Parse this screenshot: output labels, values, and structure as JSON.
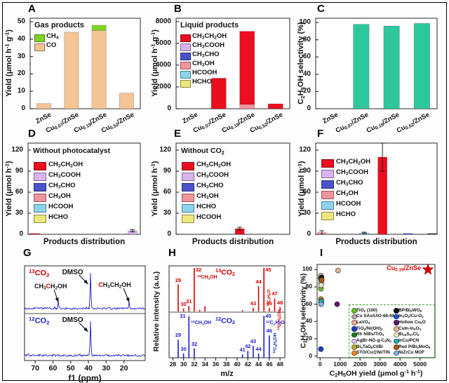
{
  "chart_data": [
    {
      "panel": "A",
      "type": "bar",
      "title": "Gas products",
      "ylabel": "Yield (μmol h^-1^ g^-1^)",
      "ylim": [
        0,
        52
      ],
      "yticks": [
        0,
        10,
        20,
        30,
        40,
        50
      ],
      "categories": [
        "ZnSe",
        "Cu_0.07_/ZnSe",
        "Cu_0.19_/ZnSe",
        "Cu_0.52_/ZnSe"
      ],
      "series": [
        {
          "name": "CH_4_",
          "color": "#7fd321",
          "values": [
            0,
            0,
            3,
            0
          ]
        },
        {
          "name": "CO",
          "color": "#f4c495",
          "values": [
            3,
            44,
            45,
            9
          ]
        }
      ]
    },
    {
      "panel": "B",
      "type": "bar",
      "title": "Liquid products",
      "ylabel": "Yield (μmol h^-1^ g^-1^)",
      "ylim": [
        0,
        8300
      ],
      "yticks": [
        0,
        2000,
        4000,
        6000,
        8000
      ],
      "categories": [
        "ZnSe",
        "Cu_0.07_/ZnSe",
        "Cu_0.19_/ZnSe",
        "Cu_0.52_/ZnSe"
      ],
      "series": [
        {
          "name": "CH_3_CH_2_OH",
          "color": "#ea0e1e",
          "values": [
            0,
            2800,
            6700,
            450
          ]
        },
        {
          "name": "CH_3_COOH",
          "color": "#d9b3f0",
          "values": [
            0,
            0,
            0,
            0
          ]
        },
        {
          "name": "CH_3_CHO",
          "color": "#4a52cc",
          "values": [
            0,
            0,
            0,
            0
          ]
        },
        {
          "name": "CH_3_OH",
          "color": "#f2949c",
          "values": [
            0,
            0,
            400,
            0
          ]
        },
        {
          "name": "HCOOH",
          "color": "#8ad4f0",
          "values": [
            0,
            0,
            0,
            0
          ]
        },
        {
          "name": "HCHO",
          "color": "#ece87d",
          "values": [
            0,
            0,
            0,
            0
          ]
        }
      ]
    },
    {
      "panel": "C",
      "type": "bar",
      "title": "",
      "hide_legend": true,
      "ylabel": "C_2_H_5_OH selectivity (%)",
      "ylim": [
        0,
        105
      ],
      "yticks": [
        0,
        20,
        40,
        60,
        80,
        100
      ],
      "categories": [
        "ZnSe",
        "Cu_0.07_/ZnSe",
        "Cu_0.19_/ZnSe",
        "Cu_0.52_/ZnSe"
      ],
      "series": [
        {
          "name": "C_2_H_5_OH selectivity",
          "color": "#2ec79b",
          "values": [
            0,
            98,
            96,
            99
          ]
        }
      ]
    },
    {
      "panel": "D",
      "type": "dist",
      "title": "Without photocatalyst",
      "ylabel": "Yield (μmol h^-1^)",
      "xlabel": "Products distribution",
      "ylim": [
        0,
        130
      ],
      "yticks": [
        0,
        30,
        60,
        90,
        120
      ],
      "legend": [
        {
          "label": "CH_3_CH_2_OH",
          "color": "#ea0e1e"
        },
        {
          "label": "CH_3_COOH",
          "color": "#d9b3f0"
        },
        {
          "label": "CH_3_CHO",
          "color": "#4a52cc"
        },
        {
          "label": "CH_3_OH",
          "color": "#f2949c"
        },
        {
          "label": "HCOOH",
          "color": "#8ad4f0"
        },
        {
          "label": "HCHO",
          "color": "#ece87d"
        }
      ],
      "bars": [
        {
          "x": 0.06,
          "value": 0.8,
          "err": 0,
          "color": "#ea0e1e"
        },
        {
          "x": 0.93,
          "value": 5,
          "err": 1.5,
          "color": "#d9b3f0"
        }
      ]
    },
    {
      "panel": "E",
      "type": "dist",
      "title": "Without CO_2_",
      "ylabel": "Yield (μmol h^-1^)",
      "xlabel": "Products distribution",
      "ylim": [
        0,
        130
      ],
      "yticks": [
        0,
        30,
        60,
        90,
        120
      ],
      "legend": [
        {
          "label": "CH_3_CH_2_OH",
          "color": "#ea0e1e"
        },
        {
          "label": "CH_3_COOH",
          "color": "#d9b3f0"
        },
        {
          "label": "CH_3_CHO",
          "color": "#4a52cc"
        },
        {
          "label": "CH_3_OH",
          "color": "#f2949c"
        },
        {
          "label": "HCHO",
          "color": "#8ad4f0"
        },
        {
          "label": "HCOOH",
          "color": "#ece87d"
        }
      ],
      "bars": [
        {
          "x": 0.56,
          "value": 8,
          "err": 2,
          "color": "#ea0e1e"
        }
      ]
    },
    {
      "panel": "F",
      "type": "dist",
      "title": "",
      "ylabel": "Yield (μmol h^-1^)",
      "xlabel": "Products distribution",
      "ylim": [
        0,
        130
      ],
      "yticks": [
        0,
        30,
        60,
        90,
        120
      ],
      "legend": [
        {
          "label": "CH_3_CH_2_OH",
          "color": "#ea0e1e"
        },
        {
          "label": "CH_3_COOH",
          "color": "#d9b3f0"
        },
        {
          "label": "CH_3_CHO",
          "color": "#4a52cc"
        },
        {
          "label": "CH_3_OH",
          "color": "#f2949c"
        },
        {
          "label": "HCOOH",
          "color": "#8ad4f0"
        },
        {
          "label": "HCHO",
          "color": "#ece87d"
        }
      ],
      "bars": [
        {
          "x": 0.05,
          "value": 2.5,
          "err": 2.5,
          "color": "#f2949c"
        },
        {
          "x": 0.4,
          "value": 2,
          "err": 1,
          "color": "#8ad4f0"
        },
        {
          "x": 0.55,
          "value": 110,
          "err": 20,
          "color": "#ea0e1e"
        },
        {
          "x": 0.76,
          "value": 0.5,
          "err": 0,
          "color": "#4a52cc"
        },
        {
          "x": 0.96,
          "value": 0.8,
          "err": 0,
          "color": "#333333"
        }
      ]
    },
    {
      "panel": "G",
      "type": "nmr",
      "xlabel": "f1 (ppm)",
      "xlim": [
        76,
        8
      ],
      "xticks": [
        70,
        60,
        50,
        40,
        30,
        20
      ],
      "traces": [
        {
          "label": "^13^CO_2_",
          "label_color": "#d40000",
          "line_color": "#1a1ad4",
          "peaks": [
            {
              "ppm": 57,
              "h": 0.22
            },
            {
              "ppm": 39,
              "h": 0.92
            },
            {
              "ppm": 17,
              "h": 0.2
            }
          ],
          "annotations": [
            {
              "text": "DMSO",
              "ppm": 39
            },
            {
              "text": "CH_3_[C]H_2_OH",
              "ppm": 57
            },
            {
              "text": "[C]H_3_CH_2_OH",
              "ppm": 17
            }
          ]
        },
        {
          "label": "^12^CO_2_",
          "label_color": "#1a1ad4",
          "line_color": "#1a1ad4",
          "peaks": [
            {
              "ppm": 39,
              "h": 0.9
            }
          ],
          "annotations": [
            {
              "text": "DMSO",
              "ppm": 39
            }
          ]
        }
      ]
    },
    {
      "panel": "H",
      "type": "ms",
      "ylabel": "Relative intensity (a.u.)",
      "xlabel": "m/z",
      "xlim": [
        27.3,
        48.9
      ],
      "xticks": [
        28,
        30,
        32,
        34,
        36,
        38,
        40,
        42,
        44,
        46,
        48
      ],
      "top": {
        "label": "^13^CO_2_",
        "color": "#d40000",
        "peaks": [
          {
            "mz": 29,
            "h": 0.62,
            "t": "29"
          },
          {
            "mz": 30,
            "h": 0.07,
            "t": "30"
          },
          {
            "mz": 31,
            "h": 0.13,
            "t": "31"
          },
          {
            "mz": 32,
            "h": 1,
            "t": "32",
            "side": "^13^CH_3_OH"
          },
          {
            "mz": 33,
            "h": 0.04
          },
          {
            "mz": 34,
            "h": 0.12
          },
          {
            "mz": 41,
            "h": 0.03
          },
          {
            "mz": 43,
            "h": 0.08,
            "t": "43"
          },
          {
            "mz": 44,
            "h": 0.58,
            "t": "44"
          },
          {
            "mz": 45,
            "h": 1,
            "t": "45",
            "rot": "^13^C_2_H_5_O"
          },
          {
            "mz": 46,
            "h": 0.08,
            "t": "46"
          },
          {
            "mz": 47,
            "h": 0.3,
            "t": "47",
            "rot": "^13^C_2_H_5_OH"
          },
          {
            "mz": 48,
            "h": 0.1,
            "t": "48"
          }
        ]
      },
      "bottom": {
        "label": "^12^CO_2_",
        "color": "#1c1ccd",
        "peaks": [
          {
            "mz": 29,
            "h": 0.42,
            "t": "29"
          },
          {
            "mz": 30,
            "h": 0.1,
            "t": "30"
          },
          {
            "mz": 31,
            "h": 0.97,
            "t": "31",
            "side": "^12^CH_3_OH"
          },
          {
            "mz": 32,
            "h": 0.22,
            "t": "32"
          },
          {
            "mz": 41,
            "h": 0.08,
            "t": "41"
          },
          {
            "mz": 42,
            "h": 0.16,
            "t": "42"
          },
          {
            "mz": 43,
            "h": 0.28,
            "t": "43"
          },
          {
            "mz": 44,
            "h": 0.1,
            "t": "44"
          },
          {
            "mz": 45,
            "h": 0.98,
            "t": "45",
            "side": "^12^C_2_H_5_O"
          },
          {
            "mz": 46,
            "h": 0.52,
            "t": "46",
            "rot": "^12^C_2_H_5_OH"
          }
        ]
      }
    },
    {
      "panel": "I",
      "type": "scatter",
      "xlabel": "C_2_H_5_OH yield (μmol g^-1^ h^-1^)",
      "ylabel": "C_2_H_5_OH selectivity (%)",
      "xlim": [
        -150,
        5750
      ],
      "xticks": [
        0,
        1000,
        2000,
        3000,
        4000,
        5000
      ],
      "ylim": [
        -2,
        106
      ],
      "yticks": [
        0,
        20,
        40,
        60,
        80,
        100
      ],
      "star": {
        "label": "Cu_0.19_/ZnSe",
        "color": "#e00000",
        "x": 5400,
        "y": 100
      },
      "points": [
        {
          "name": "TiO_2_ (100)",
          "color": "#6abf2e",
          "x": 40,
          "y": 78
        },
        {
          "name": "Cu SAs/UiO-66-NH_2_",
          "color": "#b3aaaa",
          "x": 60,
          "y": 87
        },
        {
          "name": "LaVO_4_",
          "color": "#f2a8a0",
          "x": 40,
          "y": 93
        },
        {
          "name": "TiO_2_/Ni(OH)_2_",
          "color": "#1f3fbf",
          "x": 40,
          "y": 8
        },
        {
          "name": "Rh NWs/TiO_2_",
          "color": "#1e7d1e",
          "x": 30,
          "y": 90
        },
        {
          "name": "AgBr-NG-g-C_3_N_4_",
          "color": "#d8c3ef",
          "x": 50,
          "y": 84
        },
        {
          "name": "Bi_4_TaO_8_Cl/Bi",
          "color": "#b8a830",
          "x": 40,
          "y": 66
        },
        {
          "name": "STO/Cu@Ni/TiN",
          "color": "#f08a1d",
          "x": 60,
          "y": 64
        },
        {
          "name": "BP/Bi_2_WO_6_",
          "color": "#141414",
          "x": 70,
          "y": 91
        },
        {
          "name": "In_2_O_3_/Cu-O_2_",
          "color": "#2255cc",
          "x": 60,
          "y": 61
        },
        {
          "name": "Hollow Cu_2_O",
          "color": "#5c1a66",
          "x": 850,
          "y": 60
        },
        {
          "name": "CuIn-In_2_O_3_",
          "color": "#dcb48f",
          "x": 900,
          "y": 99
        },
        {
          "name": "Bi_19_S_27_Cl_3_",
          "color": "#efe3c2",
          "x": 55,
          "y": 82
        },
        {
          "name": "InCu/PCN",
          "color": "#19b5b5",
          "x": 45,
          "y": 63
        },
        {
          "name": "Red P/Bi_2_MoO_6_",
          "color": "#b05a12",
          "x": 80,
          "y": 88
        },
        {
          "name": "NiZrCu MOF",
          "color": "#7fb2e5",
          "x": 50,
          "y": 60
        }
      ]
    }
  ]
}
